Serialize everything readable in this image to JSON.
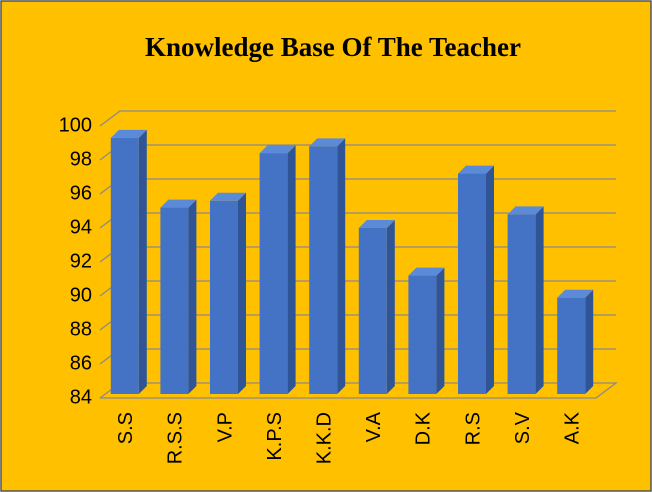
{
  "chart_data": {
    "type": "bar3d",
    "title": "Knowledge Base Of The Teacher",
    "categories": [
      "S.S",
      "R.S.S",
      "V.P",
      "K.P.S",
      "K.K.D",
      "V.A",
      "D.K",
      "R.S",
      "S.V",
      "A.K"
    ],
    "values": [
      99.3,
      95.2,
      95.6,
      98.4,
      98.8,
      94.0,
      91.2,
      97.2,
      94.8,
      89.9
    ],
    "color": "#4472c4",
    "ylim": [
      84,
      100
    ],
    "yticks": [
      84,
      86,
      88,
      90,
      92,
      94,
      96,
      98,
      100
    ],
    "grid": true
  }
}
